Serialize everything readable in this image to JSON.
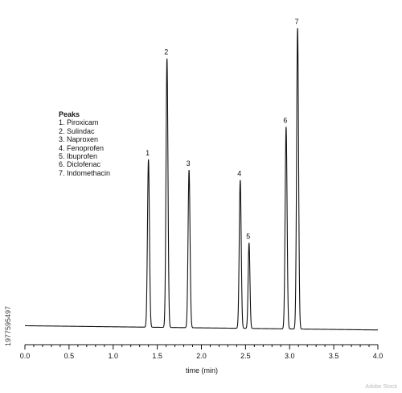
{
  "chart_data": {
    "type": "line",
    "title": "",
    "xlabel": "time (min)",
    "ylabel": "",
    "xlim": [
      0.0,
      4.0
    ],
    "ylim": [
      0,
      100
    ],
    "x_ticks": [
      "0.0",
      "0.5",
      "1.0",
      "1.5",
      "2.0",
      "2.5",
      "3.0",
      "3.5",
      "4.0"
    ],
    "x_minor_step": 0.1,
    "baseline": [
      [
        0.0,
        2.0
      ],
      [
        4.0,
        0.6
      ]
    ],
    "peaks": [
      {
        "label": "1",
        "x": 1.4,
        "y": 56.8,
        "width": 0.011
      },
      {
        "label": "2",
        "x": 1.61,
        "y": 90.0,
        "width": 0.011
      },
      {
        "label": "3",
        "x": 1.86,
        "y": 53.3,
        "width": 0.011
      },
      {
        "label": "4",
        "x": 2.44,
        "y": 50.0,
        "width": 0.011
      },
      {
        "label": "5",
        "x": 2.54,
        "y": 29.3,
        "width": 0.01
      },
      {
        "label": "6",
        "x": 2.96,
        "y": 67.5,
        "width": 0.011
      },
      {
        "label": "7",
        "x": 3.09,
        "y": 100.0,
        "width": 0.011
      }
    ],
    "legend": {
      "title": "Peaks",
      "entries": [
        "1. Piroxicam",
        "2. Sulindac",
        "3. Naproxen",
        "4. Fenoprofen",
        "5. Ibuprofen",
        "6. Diclofenac",
        "7. Indomethacin"
      ],
      "placement": "upper-left"
    },
    "grid": false,
    "line_color": "#111111"
  },
  "side_text": "1977595497",
  "watermark": "Adobe Stock"
}
